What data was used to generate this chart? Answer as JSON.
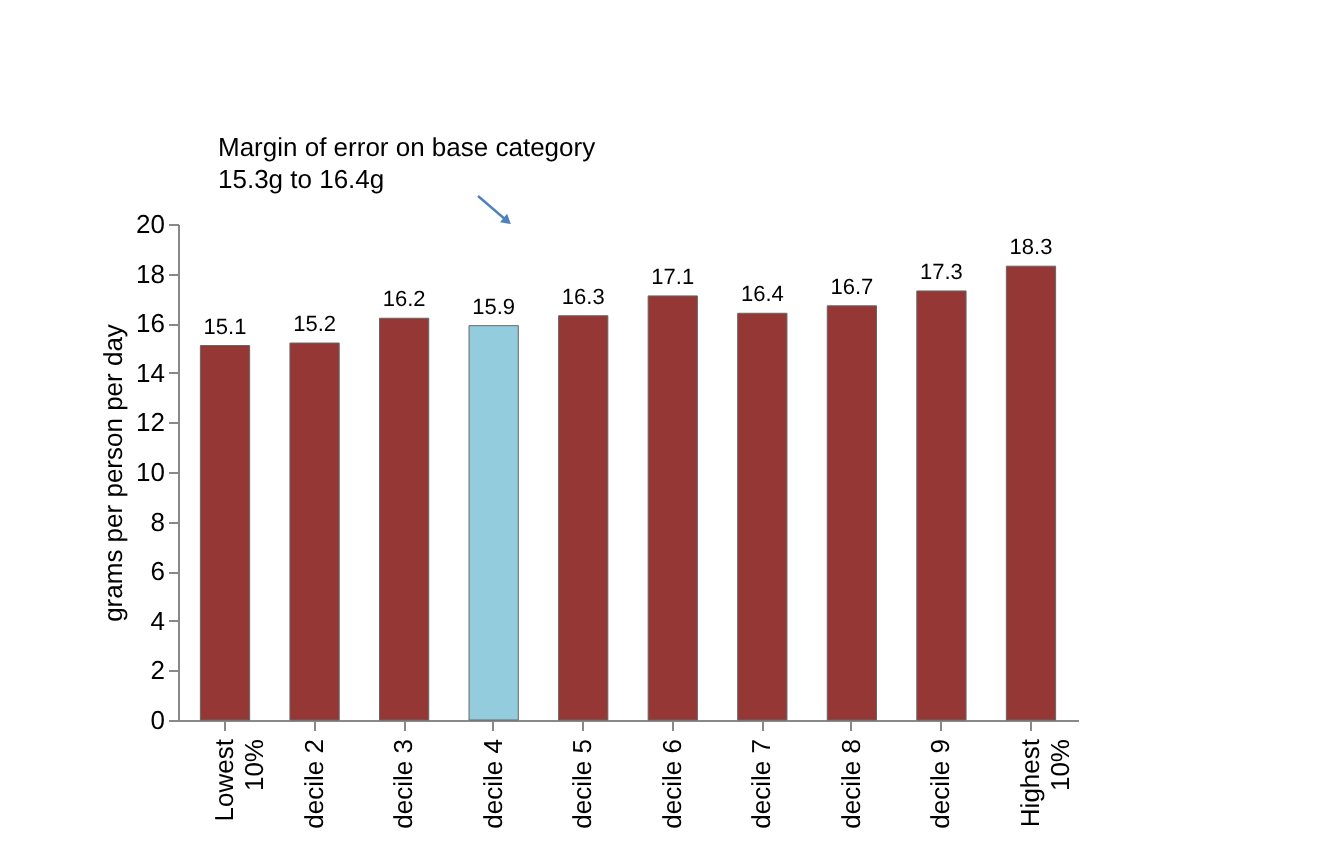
{
  "chart_data": {
    "type": "bar",
    "ylabel": "grams per person per day",
    "categories": [
      "Lowest\n10%",
      "decile 2",
      "decile 3",
      "decile 4",
      "decile 5",
      "decile 6",
      "decile 7",
      "decile 8",
      "decile 9",
      "Highest\n10%"
    ],
    "values": [
      15.1,
      15.2,
      16.2,
      15.9,
      16.3,
      17.1,
      16.4,
      16.7,
      17.3,
      18.3
    ],
    "colors": [
      "#953735",
      "#953735",
      "#953735",
      "#93cddd",
      "#953735",
      "#953735",
      "#953735",
      "#953735",
      "#953735",
      "#953735"
    ],
    "ylim": [
      0,
      20
    ],
    "yticks": [
      0,
      2,
      4,
      6,
      8,
      10,
      12,
      14,
      16,
      18,
      20
    ],
    "data_labels": true,
    "grid": false,
    "annotations": [
      "Margin of error on base category\n15.3g to 16.4g"
    ]
  }
}
